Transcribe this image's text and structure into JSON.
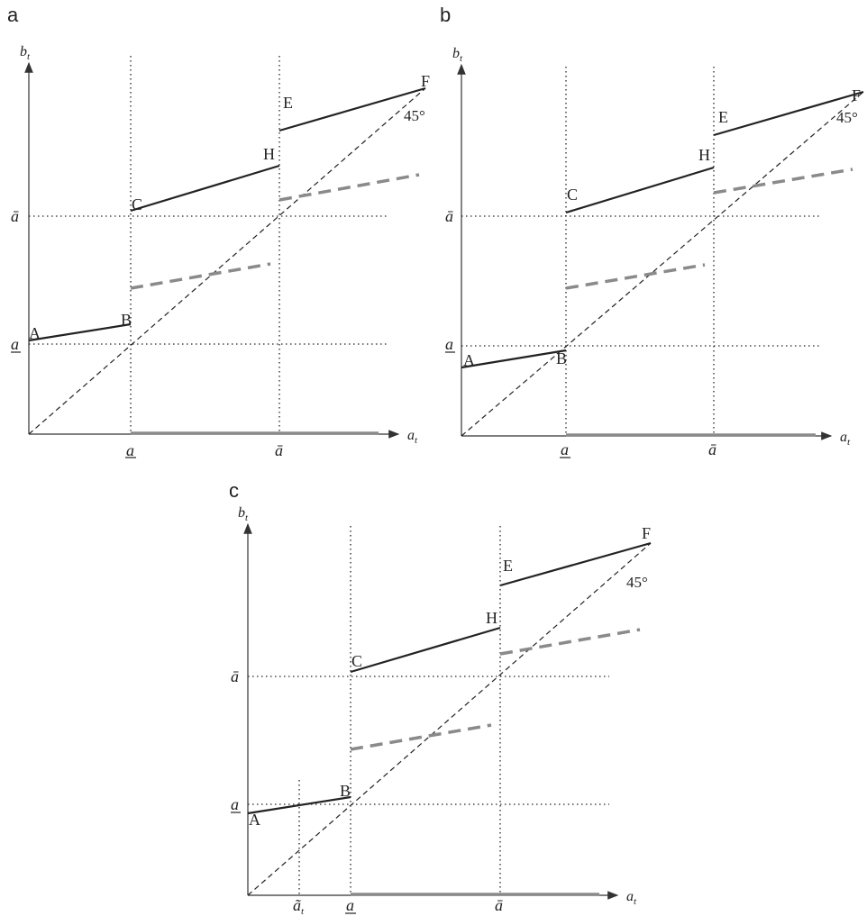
{
  "panels": [
    {
      "label": "a",
      "y_axis": "b",
      "y_axis_sub": "t",
      "x_axis": "a",
      "x_axis_sub": "t",
      "x_ticks": [
        "a",
        "ā"
      ],
      "y_ticks": [
        "ā",
        "a"
      ],
      "points": {
        "A": "A",
        "B": "B",
        "C": "C",
        "H": "H",
        "E": "E",
        "F": "F"
      },
      "angle": "45°"
    },
    {
      "label": "b",
      "y_axis": "b",
      "y_axis_sub": "t",
      "x_axis": "a",
      "x_axis_sub": "t",
      "x_ticks": [
        "a",
        "ā"
      ],
      "y_ticks": [
        "ā",
        "a"
      ],
      "points": {
        "A": "A",
        "B": "B",
        "C": "C",
        "H": "H",
        "E": "E",
        "F": "F"
      },
      "angle": "45°"
    },
    {
      "label": "c",
      "y_axis": "b",
      "y_axis_sub": "t",
      "x_axis": "a",
      "x_axis_sub": "t",
      "x_ticks": [
        "ã",
        "a",
        "ā"
      ],
      "x_tick_sub": "t",
      "y_ticks": [
        "ā",
        "a"
      ],
      "points": {
        "A": "A",
        "B": "B",
        "C": "C",
        "H": "H",
        "E": "E",
        "F": "F"
      },
      "angle": "45°"
    }
  ]
}
